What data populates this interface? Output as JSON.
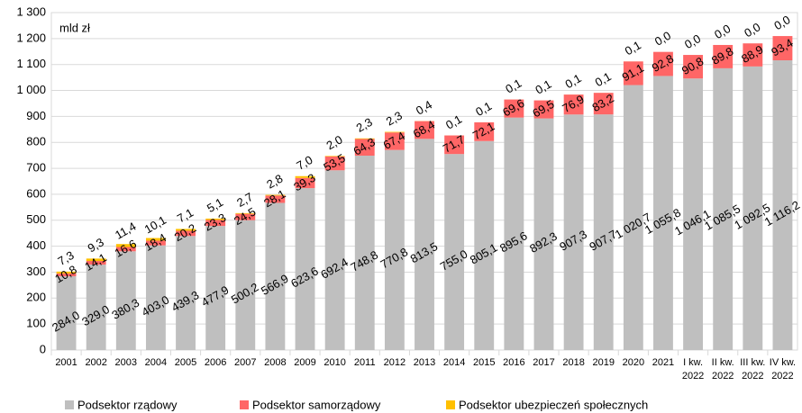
{
  "chart_data": {
    "type": "stacked_bar",
    "annotation": "mld zł",
    "categories": [
      "2001",
      "2002",
      "2003",
      "2004",
      "2005",
      "2006",
      "2007",
      "2008",
      "2009",
      "2010",
      "2011",
      "2012",
      "2013",
      "2014",
      "2015",
      "2016",
      "2017",
      "2018",
      "2019",
      "2020",
      "2021",
      "I kw. 2022",
      "II kw. 2022",
      "III kw. 2022",
      "IV kw. 2022"
    ],
    "series": [
      {
        "name": "Podsektor rządowy",
        "color": "#bfbfbf",
        "values": [
          284.0,
          329.0,
          380.3,
          403.0,
          439.3,
          477.9,
          500.2,
          566.9,
          623.6,
          692.4,
          748.8,
          770.8,
          813.5,
          755.0,
          805.1,
          895.6,
          892.3,
          907.3,
          907.7,
          1020.7,
          1055.8,
          1046.1,
          1085.5,
          1092.5,
          1116.2
        ],
        "value_labels": [
          "284,0",
          "329,0",
          "380,3",
          "403,0",
          "439,3",
          "477,9",
          "500,2",
          "566,9",
          "623,6",
          "692,4",
          "748,8",
          "770,8",
          "813,5",
          "755,0",
          "805,1",
          "895,6",
          "892,3",
          "907,3",
          "907,7",
          "1 020,7",
          "1 055,8",
          "1 046,1",
          "1 085,5",
          "1 092,5",
          "1 116,2"
        ]
      },
      {
        "name": "Podsektor samorządowy",
        "color": "#ff6666",
        "values": [
          10.8,
          14.1,
          16.6,
          18.4,
          20.2,
          23.3,
          24.5,
          28.1,
          39.3,
          53.5,
          64.3,
          67.4,
          68.4,
          71.7,
          72.1,
          69.6,
          69.5,
          76.9,
          83.2,
          91.1,
          92.8,
          90.8,
          89.8,
          88.9,
          93.4
        ],
        "value_labels": [
          "10,8",
          "14,1",
          "16,6",
          "18,4",
          "20,2",
          "23,3",
          "24,5",
          "28,1",
          "39,3",
          "53,5",
          "64,3",
          "67,4",
          "68,4",
          "71,7",
          "72,1",
          "69,6",
          "69,5",
          "76,9",
          "83,2",
          "91,1",
          "92,8",
          "90,8",
          "89,8",
          "88,9",
          "93,4"
        ]
      },
      {
        "name": "Podsektor ubezpieczeń społecznych",
        "color": "#ffc000",
        "values": [
          7.3,
          9.3,
          11.4,
          10.1,
          7.1,
          5.1,
          2.7,
          2.8,
          7.0,
          2.0,
          2.3,
          2.3,
          0.4,
          0.1,
          0.1,
          0.1,
          0.1,
          0.1,
          0.1,
          0.1,
          0.0,
          0.0,
          0.0,
          0.0,
          0.0
        ],
        "value_labels": [
          "7,3",
          "9,3",
          "11,4",
          "10,1",
          "7,1",
          "5,1",
          "2,7",
          "2,8",
          "7,0",
          "2,0",
          "2,3",
          "2,3",
          "0,4",
          "0,1",
          "0,1",
          "0,1",
          "0,1",
          "0,1",
          "0,1",
          "0,1",
          "0,0",
          "0,0",
          "0,0",
          "0,0",
          "0,0"
        ]
      }
    ],
    "ylim": [
      0,
      1300
    ],
    "yticks": [
      0,
      100,
      200,
      300,
      400,
      500,
      600,
      700,
      800,
      900,
      {
        "value": 1000,
        "label": "1 000"
      },
      {
        "value": 1100,
        "label": "1 100"
      },
      {
        "value": 1200,
        "label": "1 200"
      },
      {
        "value": 1300,
        "label": "1 300"
      }
    ],
    "grid": true,
    "legend": "bottom"
  }
}
